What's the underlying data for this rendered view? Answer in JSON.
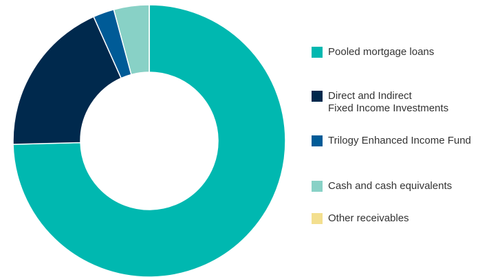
{
  "chart_data": {
    "type": "donut",
    "series": [
      {
        "name": "Pooled mortgage loans",
        "color": "#00b8b0",
        "values": [
          74.6
        ]
      },
      {
        "name": "Direct and Indirect\nFixed Income Investments",
        "color": "#00294d",
        "values": [
          18.7
        ]
      },
      {
        "name": "Trilogy Enhanced Income Fund",
        "color": "#005b97",
        "values": [
          2.5
        ]
      },
      {
        "name": "Cash and cash equivalents",
        "color": "#88d1c6",
        "values": [
          4.2
        ]
      },
      {
        "name": "Other receivables",
        "color": "#f3df8f",
        "values": [
          0
        ]
      }
    ],
    "legend": "right"
  }
}
